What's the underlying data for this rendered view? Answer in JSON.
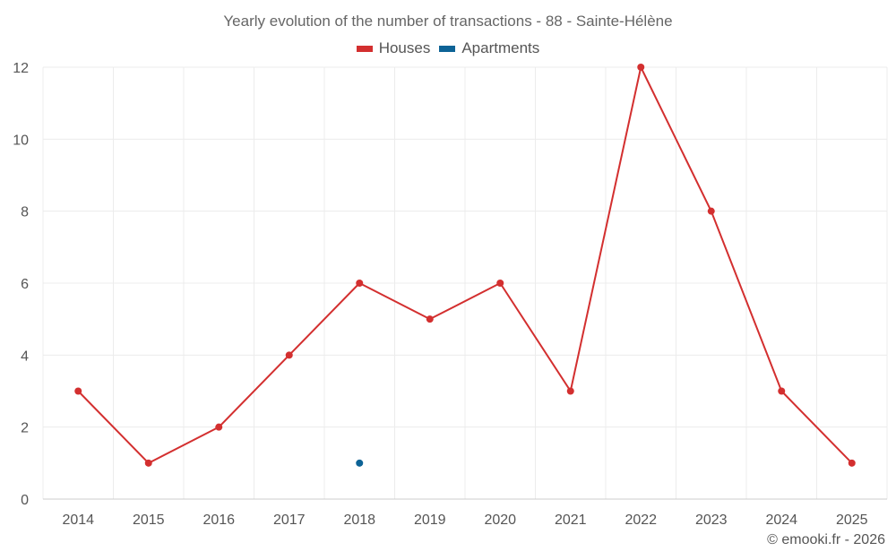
{
  "chart_data": {
    "type": "line",
    "title": "Yearly evolution of the number of transactions - 88 - Sainte-Hélène",
    "x": [
      "2014",
      "2015",
      "2016",
      "2017",
      "2018",
      "2019",
      "2020",
      "2021",
      "2022",
      "2023",
      "2024",
      "2025"
    ],
    "y_ticks": [
      "0",
      "2",
      "4",
      "6",
      "8",
      "10",
      "12"
    ],
    "ylim": [
      0,
      12
    ],
    "grid": true,
    "legend_position": "top-center",
    "series": [
      {
        "name": "Houses",
        "color": "#d32f2f",
        "values": [
          3,
          1,
          2,
          4,
          6,
          5,
          6,
          3,
          12,
          8,
          3,
          1
        ]
      },
      {
        "name": "Apartments",
        "color": "#0d6396",
        "values": [
          null,
          null,
          null,
          null,
          1,
          null,
          null,
          null,
          null,
          null,
          null,
          null
        ]
      }
    ]
  },
  "credit": "© emooki.fr - 2026"
}
